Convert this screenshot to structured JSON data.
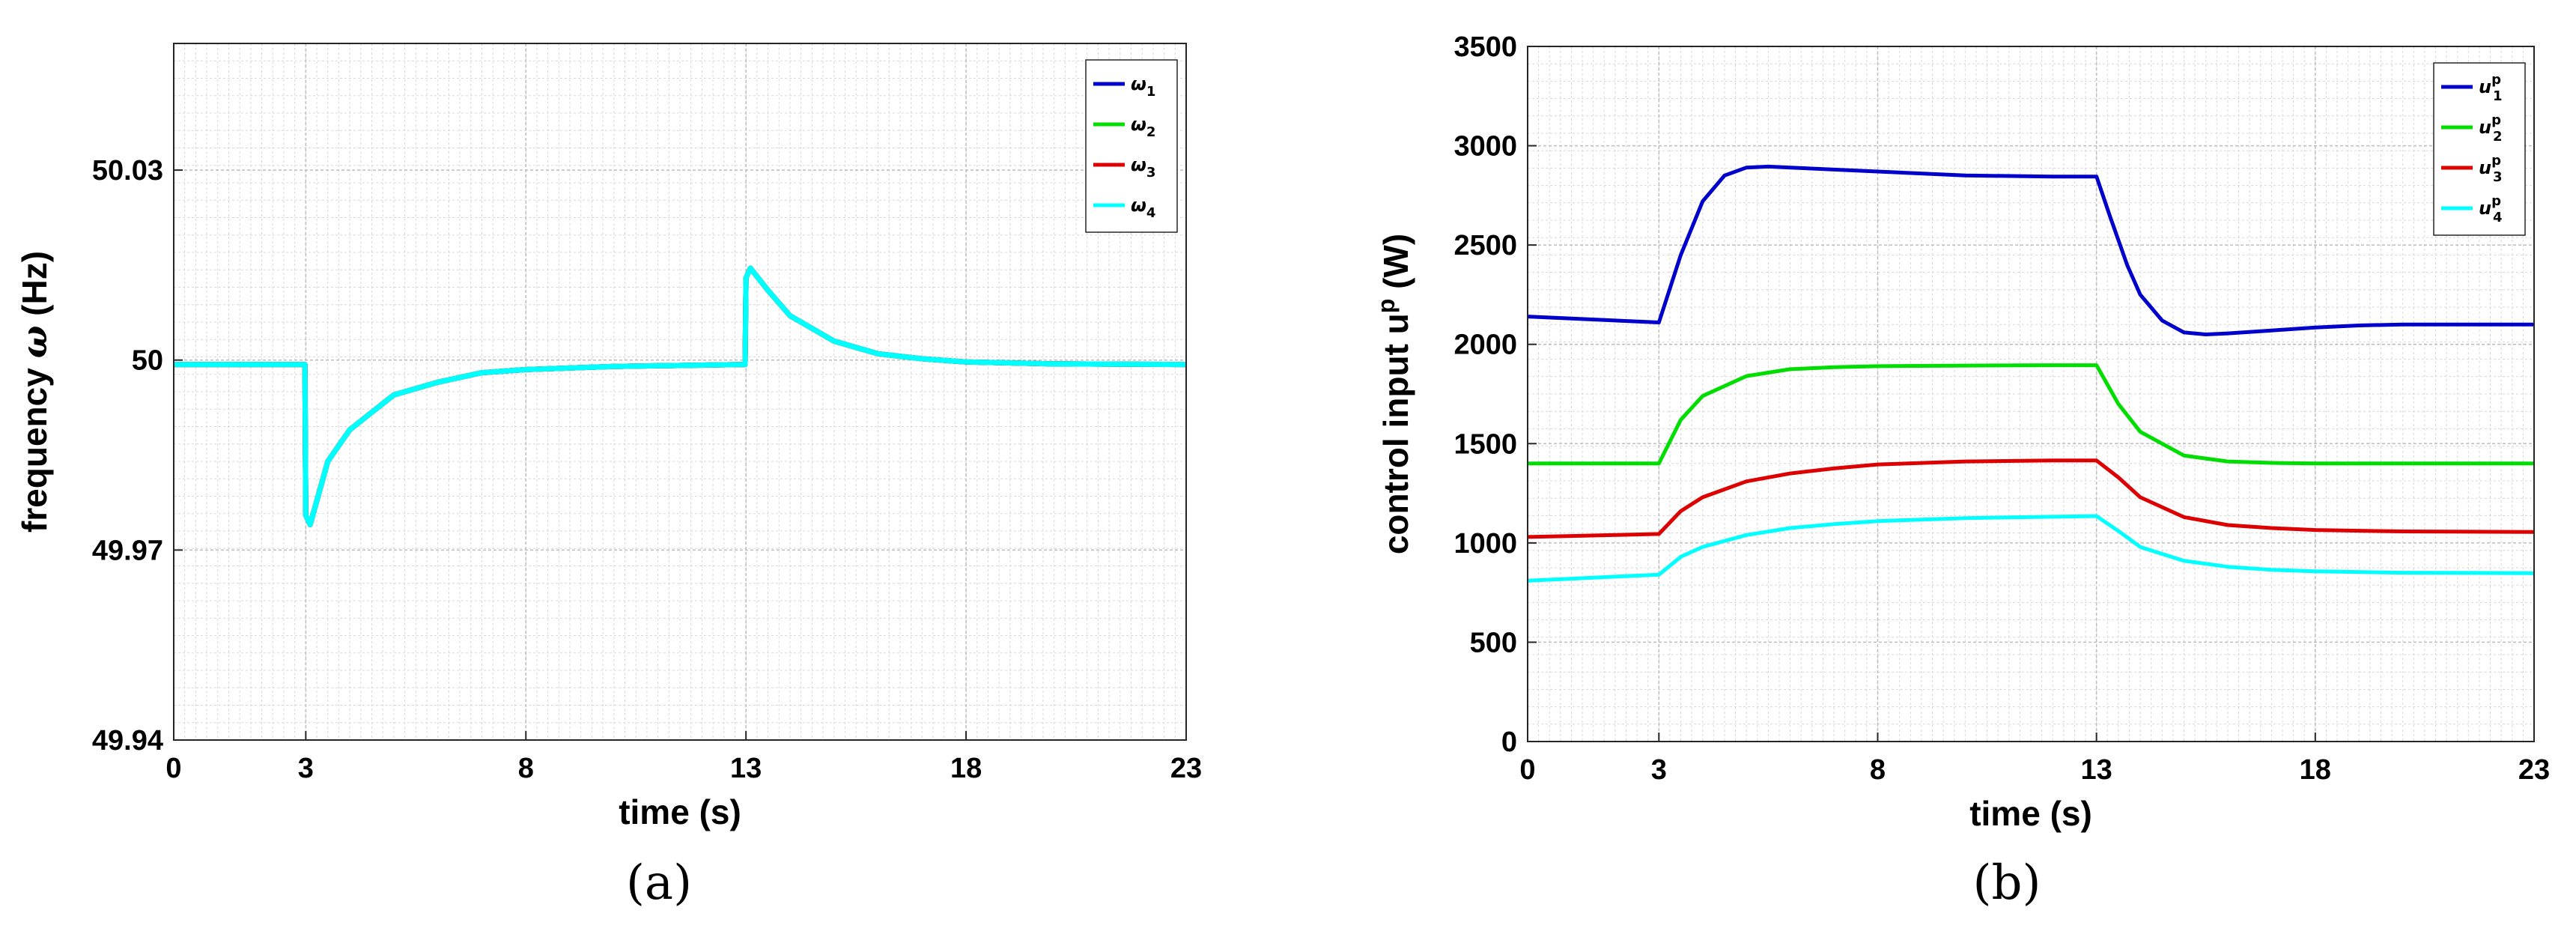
{
  "chart_data": [
    {
      "type": "line",
      "panel_label": "(a)",
      "xlabel": "time (s)",
      "ylabel_main": "frequency ",
      "ylabel_symbol": "ω",
      "ylabel_unit": " (Hz)",
      "xlim": [
        0,
        23
      ],
      "ylim": [
        49.94,
        50.05
      ],
      "xticks": [
        0,
        3,
        8,
        13,
        18,
        23
      ],
      "yticks": [
        49.94,
        49.97,
        50,
        50.03
      ],
      "ytick_labels": [
        "49.94",
        "49.97",
        "50",
        "50.03"
      ],
      "grid": true,
      "minor_grid": true,
      "legend_position": "top-right",
      "series": [
        {
          "name": "ω",
          "sub": "1",
          "color": "#0000cc",
          "x": [
            0,
            2.98,
            3.0,
            3.1,
            3.5,
            4,
            5,
            6,
            7,
            8,
            10,
            12,
            12.98,
            13.0,
            13.1,
            13.5,
            14,
            15,
            16,
            17,
            18,
            20,
            23
          ],
          "y": [
            49.9993,
            49.9993,
            49.9755,
            49.974,
            49.984,
            49.989,
            49.9945,
            49.9965,
            49.998,
            49.9985,
            49.999,
            49.9992,
            49.9993,
            50.013,
            50.0145,
            50.011,
            50.007,
            50.003,
            50.001,
            50.0002,
            49.9997,
            49.9994,
            49.9993
          ]
        },
        {
          "name": "ω",
          "sub": "2",
          "color": "#00dd00",
          "x": [
            0,
            2.98,
            3.0,
            3.1,
            3.5,
            4,
            5,
            6,
            7,
            8,
            10,
            12,
            12.98,
            13.0,
            13.1,
            13.5,
            14,
            15,
            16,
            17,
            18,
            20,
            23
          ],
          "y": [
            49.9993,
            49.9993,
            49.9755,
            49.974,
            49.984,
            49.989,
            49.9945,
            49.9965,
            49.998,
            49.9985,
            49.999,
            49.9992,
            49.9993,
            50.013,
            50.0145,
            50.011,
            50.007,
            50.003,
            50.001,
            50.0002,
            49.9997,
            49.9994,
            49.9993
          ]
        },
        {
          "name": "ω",
          "sub": "3",
          "color": "#dd0000",
          "x": [
            0,
            2.98,
            3.0,
            3.1,
            3.5,
            4,
            5,
            6,
            7,
            8,
            10,
            12,
            12.98,
            13.0,
            13.1,
            13.5,
            14,
            15,
            16,
            17,
            18,
            20,
            23
          ],
          "y": [
            49.9993,
            49.9993,
            49.9755,
            49.974,
            49.984,
            49.989,
            49.9945,
            49.9965,
            49.998,
            49.9985,
            49.999,
            49.9992,
            49.9993,
            50.013,
            50.0145,
            50.011,
            50.007,
            50.003,
            50.001,
            50.0002,
            49.9997,
            49.9994,
            49.9993
          ]
        },
        {
          "name": "ω",
          "sub": "4",
          "color": "#00ffff",
          "x": [
            0,
            2.98,
            3.0,
            3.1,
            3.5,
            4,
            5,
            6,
            7,
            8,
            10,
            12,
            12.98,
            13.0,
            13.1,
            13.5,
            14,
            15,
            16,
            17,
            18,
            20,
            23
          ],
          "y": [
            49.9993,
            49.9993,
            49.9755,
            49.974,
            49.984,
            49.989,
            49.9945,
            49.9965,
            49.998,
            49.9985,
            49.999,
            49.9992,
            49.9993,
            50.013,
            50.0145,
            50.011,
            50.007,
            50.003,
            50.001,
            50.0002,
            49.9997,
            49.9994,
            49.9993
          ]
        }
      ]
    },
    {
      "type": "line",
      "panel_label": "(b)",
      "xlabel": "time (s)",
      "ylabel_main": "control input u",
      "ylabel_sup": "p",
      "ylabel_unit": " (W)",
      "xlim": [
        0,
        23
      ],
      "ylim": [
        0,
        3500
      ],
      "xticks": [
        0,
        3,
        8,
        13,
        18,
        23
      ],
      "yticks": [
        0,
        500,
        1000,
        1500,
        2000,
        2500,
        3000,
        3500
      ],
      "grid": true,
      "minor_grid": true,
      "legend_position": "top-right",
      "series": [
        {
          "name": "u",
          "sup": "p",
          "sub": "1",
          "color": "#0000cc",
          "x": [
            0,
            1,
            2,
            3,
            3.5,
            4,
            4.5,
            5,
            5.5,
            6,
            8,
            10,
            12,
            13,
            13.3,
            13.7,
            14,
            14.5,
            15,
            15.5,
            16,
            17,
            18,
            19,
            20,
            21,
            22,
            23
          ],
          "y": [
            2140,
            2130,
            2120,
            2110,
            2450,
            2720,
            2850,
            2890,
            2895,
            2890,
            2870,
            2850,
            2845,
            2845,
            2650,
            2400,
            2250,
            2120,
            2060,
            2050,
            2055,
            2070,
            2085,
            2095,
            2100,
            2100,
            2100,
            2100
          ]
        },
        {
          "name": "u",
          "sup": "p",
          "sub": "2",
          "color": "#00dd00",
          "x": [
            0,
            1,
            2,
            3,
            3.5,
            4,
            5,
            6,
            7,
            8,
            10,
            12,
            13,
            13.5,
            14,
            15,
            16,
            17,
            18,
            20,
            23
          ],
          "y": [
            1400,
            1400,
            1400,
            1400,
            1620,
            1740,
            1840,
            1875,
            1885,
            1890,
            1893,
            1895,
            1895,
            1700,
            1560,
            1440,
            1410,
            1403,
            1400,
            1400,
            1400
          ]
        },
        {
          "name": "u",
          "sup": "p",
          "sub": "3",
          "color": "#dd0000",
          "x": [
            0,
            1,
            2,
            3,
            3.5,
            4,
            5,
            6,
            7,
            8,
            10,
            12,
            13,
            13.5,
            14,
            15,
            16,
            17,
            18,
            20,
            23
          ],
          "y": [
            1030,
            1035,
            1040,
            1045,
            1160,
            1230,
            1310,
            1350,
            1375,
            1395,
            1410,
            1415,
            1415,
            1330,
            1230,
            1130,
            1090,
            1075,
            1065,
            1058,
            1055
          ]
        },
        {
          "name": "u",
          "sup": "p",
          "sub": "4",
          "color": "#00ffff",
          "x": [
            0,
            1,
            2,
            3,
            3.5,
            4,
            5,
            6,
            7,
            8,
            10,
            12,
            13,
            13.5,
            14,
            15,
            16,
            17,
            18,
            20,
            23
          ],
          "y": [
            810,
            820,
            830,
            840,
            930,
            980,
            1040,
            1075,
            1095,
            1110,
            1125,
            1132,
            1135,
            1060,
            980,
            910,
            880,
            865,
            857,
            850,
            848
          ]
        }
      ]
    }
  ]
}
